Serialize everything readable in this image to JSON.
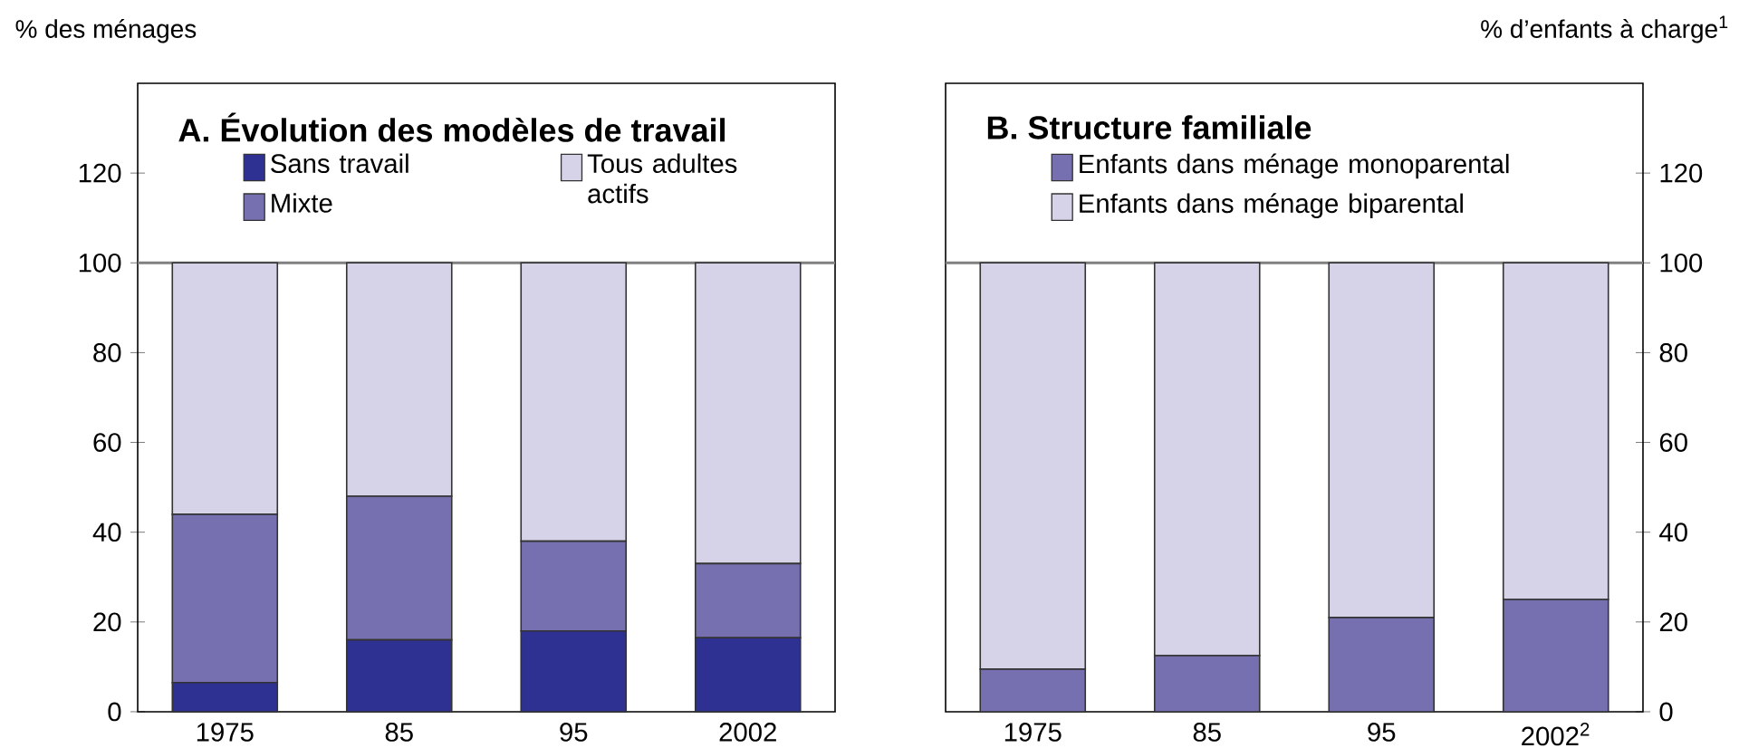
{
  "chart_data": [
    {
      "type": "bar",
      "title": "**A. Évolution des modèles de travail**",
      "ylabel": "% des ménages",
      "categories": [
        "1975",
        "85",
        "95",
        "2002"
      ],
      "stacked": true,
      "ylim": [
        0,
        140
      ],
      "yticks": [
        0,
        20,
        40,
        60,
        80,
        100,
        120
      ],
      "legend": "top left",
      "ref_lines": [
        {
          "axis": "y",
          "value": 100,
          "color": "#808080"
        }
      ],
      "series": [
        {
          "name": "Sans travail",
          "color": "#2e3192",
          "values": [
            6.5,
            16,
            18,
            16.5
          ]
        },
        {
          "name": "Mixte",
          "color": "#7670b0",
          "values": [
            37.5,
            32,
            20,
            16.5
          ]
        },
        {
          "name": "Tous adultes actifs",
          "color": "#d6d3e8",
          "values": [
            56,
            52,
            62,
            67
          ]
        }
      ]
    },
    {
      "type": "bar",
      "title": "**B. Structure familiale**",
      "y2label": "% d’enfants à charge$^{1}$",
      "categories": [
        "1975",
        "85",
        "95",
        "2002$^{2}$"
      ],
      "stacked": true,
      "y2lim": [
        0,
        140
      ],
      "y2ticks": [
        0,
        20,
        40,
        60,
        80,
        100,
        120
      ],
      "legend": "top left",
      "ref_lines": [
        {
          "axis": "y2",
          "value": 100,
          "color": "#808080"
        }
      ],
      "series": [
        {
          "name": "Enfants dans ménage monoparental",
          "color": "#7670b0",
          "axis": "y2",
          "values": [
            9.5,
            12.5,
            21,
            25
          ]
        },
        {
          "name": "Enfants dans ménage biparental",
          "color": "#d6d3e8",
          "axis": "y2",
          "values": [
            90.5,
            87.5,
            79,
            75
          ]
        }
      ]
    }
  ]
}
